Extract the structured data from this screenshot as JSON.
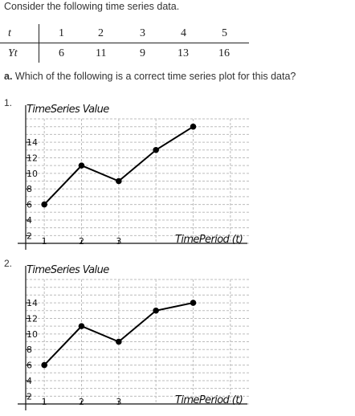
{
  "intro_text": "Consider the following time series data.",
  "table": {
    "row_header_t": "t",
    "row_header_y": "Yt",
    "t_values": [
      "1",
      "2",
      "3",
      "4",
      "5"
    ],
    "y_values": [
      "6",
      "11",
      "9",
      "13",
      "16"
    ]
  },
  "question": {
    "prefix": "a.",
    "text": "Which of the following is a correct time series plot for this data?"
  },
  "options": [
    {
      "number": "1."
    },
    {
      "number": "2."
    }
  ],
  "chart_data": [
    {
      "type": "line",
      "ylabel": "TimeSeries Value",
      "xlabel": "TimePeriod (t)",
      "x_ticks": [
        "1",
        "2",
        "3"
      ],
      "y_ticks": [
        "2",
        "4",
        "6",
        "8",
        "10",
        "12",
        "14"
      ],
      "x": [
        1,
        2,
        3,
        4,
        5
      ],
      "y": [
        6,
        11,
        9,
        13,
        16
      ],
      "xlim": [
        0.5,
        6.5
      ],
      "ylim": [
        1,
        17
      ],
      "grid": true
    },
    {
      "type": "line",
      "ylabel": "TimeSeries Value",
      "xlabel": "TimePeriod (t)",
      "x_ticks": [
        "1",
        "2",
        "3"
      ],
      "y_ticks": [
        "2",
        "4",
        "6",
        "8",
        "10",
        "12",
        "14"
      ],
      "x": [
        1,
        2,
        3,
        4,
        5
      ],
      "y": [
        6,
        11,
        9,
        13,
        14
      ],
      "xlim": [
        0.5,
        6.5
      ],
      "ylim": [
        1,
        17
      ],
      "grid": true
    }
  ]
}
